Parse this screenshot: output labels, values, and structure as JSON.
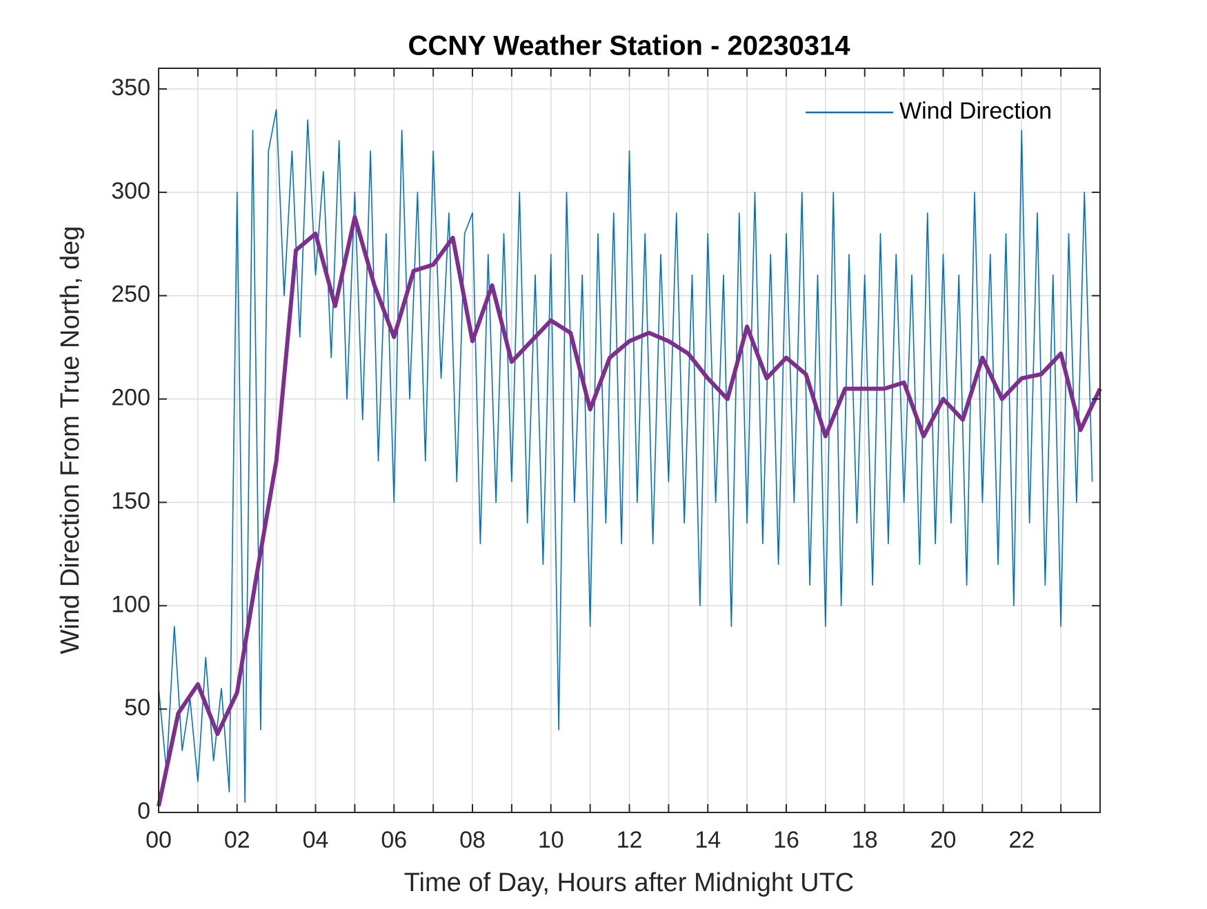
{
  "chart_data": {
    "type": "line",
    "title": "CCNY Weather Station - 20230314",
    "x_label": "Time of Day, Hours after Midnight UTC",
    "y_label": "Wind Direction From True North, deg",
    "xlim": [
      0,
      24
    ],
    "ylim": [
      0,
      360
    ],
    "xticks": [
      {
        "value": 0,
        "label": "00"
      },
      {
        "value": 2,
        "label": "02"
      },
      {
        "value": 4,
        "label": "04"
      },
      {
        "value": 6,
        "label": "06"
      },
      {
        "value": 8,
        "label": "08"
      },
      {
        "value": 10,
        "label": "10"
      },
      {
        "value": 12,
        "label": "12"
      },
      {
        "value": 14,
        "label": "14"
      },
      {
        "value": 16,
        "label": "16"
      },
      {
        "value": 18,
        "label": "18"
      },
      {
        "value": 20,
        "label": "20"
      },
      {
        "value": 22,
        "label": "22"
      }
    ],
    "x_minor_ticks": [
      1,
      3,
      5,
      7,
      9,
      11,
      13,
      15,
      17,
      19,
      21,
      23
    ],
    "yticks": [
      0,
      50,
      100,
      150,
      200,
      250,
      300,
      350
    ],
    "grid": true,
    "legend": "upper right",
    "series": [
      {
        "name": "Wind Direction",
        "color": "#0072bd",
        "width": 1.6,
        "x": [
          0,
          0.2,
          0.4,
          0.6,
          0.8,
          1,
          1.2,
          1.4,
          1.6,
          1.8,
          2,
          2.2,
          2.4,
          2.6,
          2.8,
          3,
          3.2,
          3.4,
          3.6,
          3.8,
          4,
          4.2,
          4.4,
          4.6,
          4.8,
          5,
          5.2,
          5.4,
          5.6,
          5.8,
          6,
          6.2,
          6.4,
          6.6,
          6.8,
          7,
          7.2,
          7.4,
          7.6,
          7.8,
          8,
          8.2,
          8.4,
          8.6,
          8.8,
          9,
          9.2,
          9.4,
          9.6,
          9.8,
          10,
          10.2,
          10.4,
          10.6,
          10.8,
          11,
          11.2,
          11.4,
          11.6,
          11.8,
          12,
          12.2,
          12.4,
          12.6,
          12.8,
          13,
          13.2,
          13.4,
          13.6,
          13.8,
          14,
          14.2,
          14.4,
          14.6,
          14.8,
          15,
          15.2,
          15.4,
          15.6,
          15.8,
          16,
          16.2,
          16.4,
          16.6,
          16.8,
          17,
          17.2,
          17.4,
          17.6,
          17.8,
          18,
          18.2,
          18.4,
          18.6,
          18.8,
          19,
          19.2,
          19.4,
          19.6,
          19.8,
          20,
          20.2,
          20.4,
          20.6,
          20.8,
          21,
          21.2,
          21.4,
          21.6,
          21.8,
          22,
          22.2,
          22.4,
          22.6,
          22.8,
          23,
          23.2,
          23.4,
          23.6,
          23.8
        ],
        "values": [
          60,
          20,
          90,
          30,
          55,
          15,
          75,
          25,
          60,
          10,
          300,
          5,
          330,
          40,
          320,
          340,
          250,
          320,
          230,
          335,
          260,
          310,
          220,
          325,
          200,
          300,
          190,
          320,
          170,
          280,
          150,
          330,
          200,
          300,
          170,
          320,
          210,
          290,
          160,
          280,
          290,
          130,
          270,
          150,
          280,
          160,
          300,
          140,
          260,
          120,
          270,
          40,
          300,
          150,
          260,
          90,
          280,
          140,
          290,
          130,
          320,
          150,
          280,
          130,
          270,
          160,
          290,
          140,
          260,
          100,
          280,
          150,
          260,
          90,
          290,
          140,
          300,
          130,
          270,
          120,
          280,
          150,
          300,
          110,
          260,
          90,
          300,
          100,
          270,
          140,
          260,
          110,
          280,
          130,
          270,
          150,
          260,
          120,
          290,
          130,
          270,
          140,
          260,
          110,
          300,
          150,
          270,
          120,
          280,
          100,
          330,
          140,
          290,
          110,
          260,
          90,
          280,
          150,
          300,
          160
        ]
      },
      {
        "color": "#7e2f8e",
        "width": 6,
        "x": [
          0,
          0.5,
          1,
          1.5,
          2,
          2.5,
          3,
          3.5,
          4,
          4.5,
          5,
          5.5,
          6,
          6.5,
          7,
          7.5,
          8,
          8.5,
          9,
          9.5,
          10,
          10.5,
          11,
          11.5,
          12,
          12.5,
          13,
          13.5,
          14,
          14.5,
          15,
          15.5,
          16,
          16.5,
          17,
          17.5,
          18,
          18.5,
          19,
          19.5,
          20,
          20.5,
          21,
          21.5,
          22,
          22.5,
          23,
          23.5,
          24
        ],
        "values": [
          3,
          48,
          62,
          38,
          58,
          115,
          170,
          272,
          280,
          245,
          288,
          255,
          230,
          262,
          265,
          278,
          228,
          255,
          218,
          228,
          238,
          232,
          195,
          220,
          228,
          232,
          228,
          222,
          210,
          200,
          235,
          210,
          220,
          212,
          182,
          205,
          205,
          205,
          208,
          182,
          200,
          190,
          220,
          200,
          210,
          212,
          222,
          185,
          205
        ]
      }
    ]
  }
}
